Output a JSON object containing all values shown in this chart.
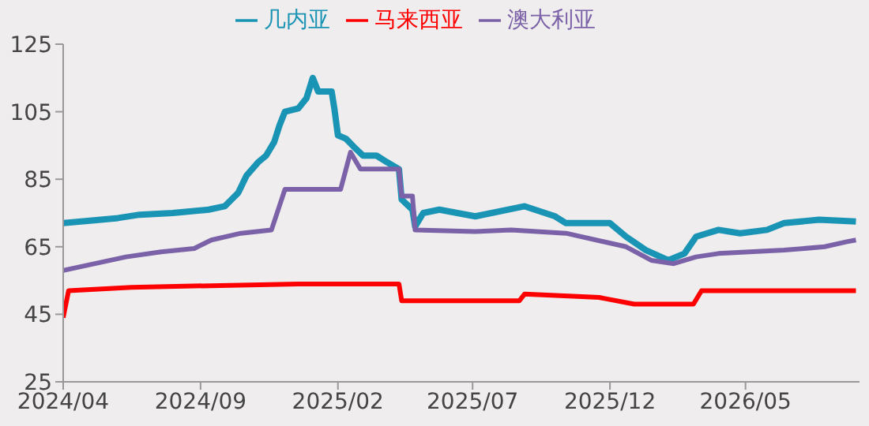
{
  "chart_data": {
    "type": "line",
    "legend": "top",
    "grid": false,
    "marker": "none",
    "line_style": "solid",
    "xlim": [
      "2024-04-01",
      "2026-09-05"
    ],
    "ylim": [
      25,
      125
    ],
    "yticks": [
      25,
      45,
      65,
      85,
      105,
      125
    ],
    "xticks": [
      {
        "value": "2024-04",
        "label": "2024/04"
      },
      {
        "value": "2024-09",
        "label": "2024/09"
      },
      {
        "value": "2025-02",
        "label": "2025/02"
      },
      {
        "value": "2025-07",
        "label": "2025/07"
      },
      {
        "value": "2025-12",
        "label": "2025/12"
      },
      {
        "value": "2026-05",
        "label": "2026/05"
      }
    ],
    "series": [
      {
        "name": "几内亚",
        "color": "#1a94b4",
        "x": [
          "2024-04-01",
          "2024-05-13",
          "2024-06-01",
          "2024-06-25",
          "2024-08-01",
          "2024-09-10",
          "2024-09-28",
          "2024-10-13",
          "2024-10-22",
          "2024-11-04",
          "2024-11-13",
          "2024-11-22",
          "2024-11-28",
          "2024-12-04",
          "2024-12-19",
          "2024-12-28",
          "2025-01-04",
          "2025-01-10",
          "2025-01-25",
          "2025-01-28",
          "2025-02-01",
          "2025-02-10",
          "2025-02-21",
          "2025-03-01",
          "2025-03-16",
          "2025-03-28",
          "2025-04-10",
          "2025-04-13",
          "2025-04-25",
          "2025-04-28",
          "2025-05-07",
          "2025-05-25",
          "2025-07-04",
          "2025-08-28",
          "2025-10-01",
          "2025-10-13",
          "2025-12-01",
          "2025-12-19",
          "2026-01-10",
          "2026-02-04",
          "2026-02-22",
          "2026-03-07",
          "2026-04-01",
          "2026-04-25",
          "2026-05-25",
          "2026-06-13",
          "2026-07-22",
          "2026-09-01"
        ],
        "values": [
          72,
          73,
          73.5,
          74.5,
          75,
          76,
          77,
          81,
          86,
          90,
          92,
          96,
          101,
          105,
          106,
          109,
          115,
          111,
          111,
          106,
          98,
          97,
          94,
          92,
          92,
          90,
          88,
          79,
          76,
          71,
          75,
          76,
          74,
          77,
          74,
          72,
          72,
          68,
          64,
          61,
          63,
          68,
          70,
          69,
          70,
          72,
          73,
          72.5
        ]
      },
      {
        "name": "马来西亚",
        "color": "#ff0000",
        "x": [
          "2024-04-01",
          "2024-04-07",
          "2024-06-16",
          "2024-12-19",
          "2025-04-10",
          "2025-04-13",
          "2025-08-22",
          "2025-08-28",
          "2025-11-19",
          "2025-12-28",
          "2026-03-04",
          "2026-03-13",
          "2026-09-01"
        ],
        "values": [
          44,
          52,
          53,
          54,
          54,
          49,
          49,
          51,
          50,
          48,
          48,
          52,
          52
        ]
      },
      {
        "name": "澳大利亚",
        "color": "#7b62a8",
        "x": [
          "2024-04-01",
          "2024-06-10",
          "2024-07-19",
          "2024-08-25",
          "2024-09-13",
          "2024-10-16",
          "2024-11-19",
          "2024-12-04",
          "2025-02-04",
          "2025-02-15",
          "2025-02-26",
          "2025-04-10",
          "2025-04-13",
          "2025-04-25",
          "2025-04-28",
          "2025-07-04",
          "2025-08-13",
          "2025-10-13",
          "2025-12-19",
          "2026-01-16",
          "2026-02-10",
          "2026-03-07",
          "2026-04-01",
          "2026-06-13",
          "2026-07-28",
          "2026-08-22",
          "2026-09-01"
        ],
        "values": [
          58,
          62,
          63.5,
          64.5,
          67,
          69,
          70,
          82,
          82,
          93,
          88,
          88,
          80,
          80,
          70,
          69.5,
          70,
          69,
          65,
          61,
          60,
          62,
          63,
          64,
          65,
          66.5,
          67
        ]
      }
    ]
  }
}
